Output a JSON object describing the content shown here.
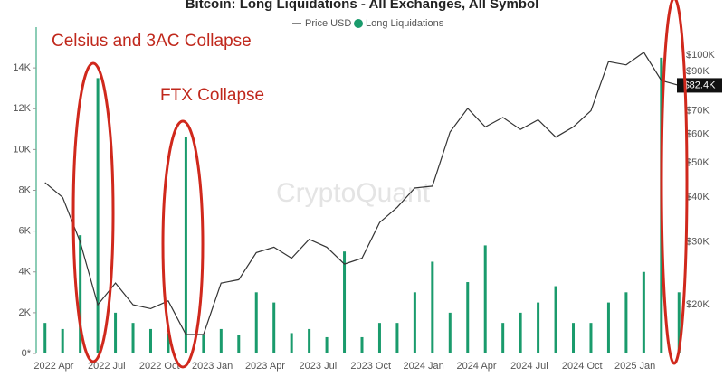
{
  "chart_data": {
    "type": "bar",
    "title": "Bitcoin: Long Liquidations - All Exchanges, All Symbol",
    "watermark": "CryptoQuant",
    "annotations": [
      "Celsius and 3AC Collapse",
      "FTX Collapse"
    ],
    "categories": [
      null,
      "2022 Apr",
      null,
      null,
      "2022 Jul",
      null,
      null,
      "2022 Oct",
      null,
      null,
      "2023 Jan",
      null,
      null,
      "2023 Apr",
      null,
      null,
      "2023 Jul",
      null,
      null,
      "2023 Oct",
      null,
      null,
      "2024 Jan",
      null,
      null,
      "2024 Apr",
      null,
      null,
      "2024 Jul",
      null,
      null,
      "2024 Oct",
      null,
      null,
      "2025 Jan",
      null,
      null
    ],
    "series": [
      {
        "name": "Price USD",
        "type": "line",
        "axis": "y2",
        "color": "#333333",
        "values": [
          44000,
          40000,
          30000,
          20000,
          23000,
          20000,
          19500,
          20500,
          16500,
          16500,
          23000,
          23500,
          28000,
          29000,
          27000,
          30500,
          29000,
          26000,
          27000,
          34000,
          37500,
          42500,
          43000,
          61000,
          71000,
          63000,
          67000,
          62000,
          66000,
          59000,
          63000,
          70000,
          96000,
          94000,
          102000,
          85000,
          82400
        ]
      },
      {
        "name": "Long Liquidations",
        "type": "bar",
        "color": "#1a9b6c",
        "values": [
          1500,
          1200,
          5800,
          13500,
          2000,
          1500,
          1200,
          1000,
          10600,
          900,
          1200,
          900,
          3000,
          2500,
          1000,
          1200,
          800,
          5000,
          800,
          1500,
          1500,
          3000,
          4500,
          2000,
          3500,
          5300,
          1500,
          2000,
          2500,
          3300,
          1500,
          1500,
          2500,
          3000,
          4000,
          14500,
          3000
        ]
      }
    ],
    "ylim": [
      0,
      16000
    ],
    "yticks": [
      {
        "value": 0,
        "label": "0*"
      },
      {
        "value": 2000,
        "label": "2K"
      },
      {
        "value": 4000,
        "label": "4K"
      },
      {
        "value": 6000,
        "label": "6K"
      },
      {
        "value": 8000,
        "label": "8K"
      },
      {
        "value": 10000,
        "label": "10K"
      },
      {
        "value": 12000,
        "label": "12K"
      },
      {
        "value": 14000,
        "label": "14K"
      }
    ],
    "y2lim": [
      14600,
      120000
    ],
    "y2_log": true,
    "y2ticks": [
      {
        "value": 20000,
        "label": "$20K"
      },
      {
        "value": 30000,
        "label": "$30K"
      },
      {
        "value": 40000,
        "label": "$40K"
      },
      {
        "value": 50000,
        "label": "$50K"
      },
      {
        "value": 60000,
        "label": "$60K"
      },
      {
        "value": 70000,
        "label": "$70K"
      },
      {
        "value": 90000,
        "label": "$90K"
      },
      {
        "value": 100000,
        "label": "$100K"
      }
    ],
    "current_price": {
      "value": 82400,
      "label": "$82.4K"
    }
  }
}
